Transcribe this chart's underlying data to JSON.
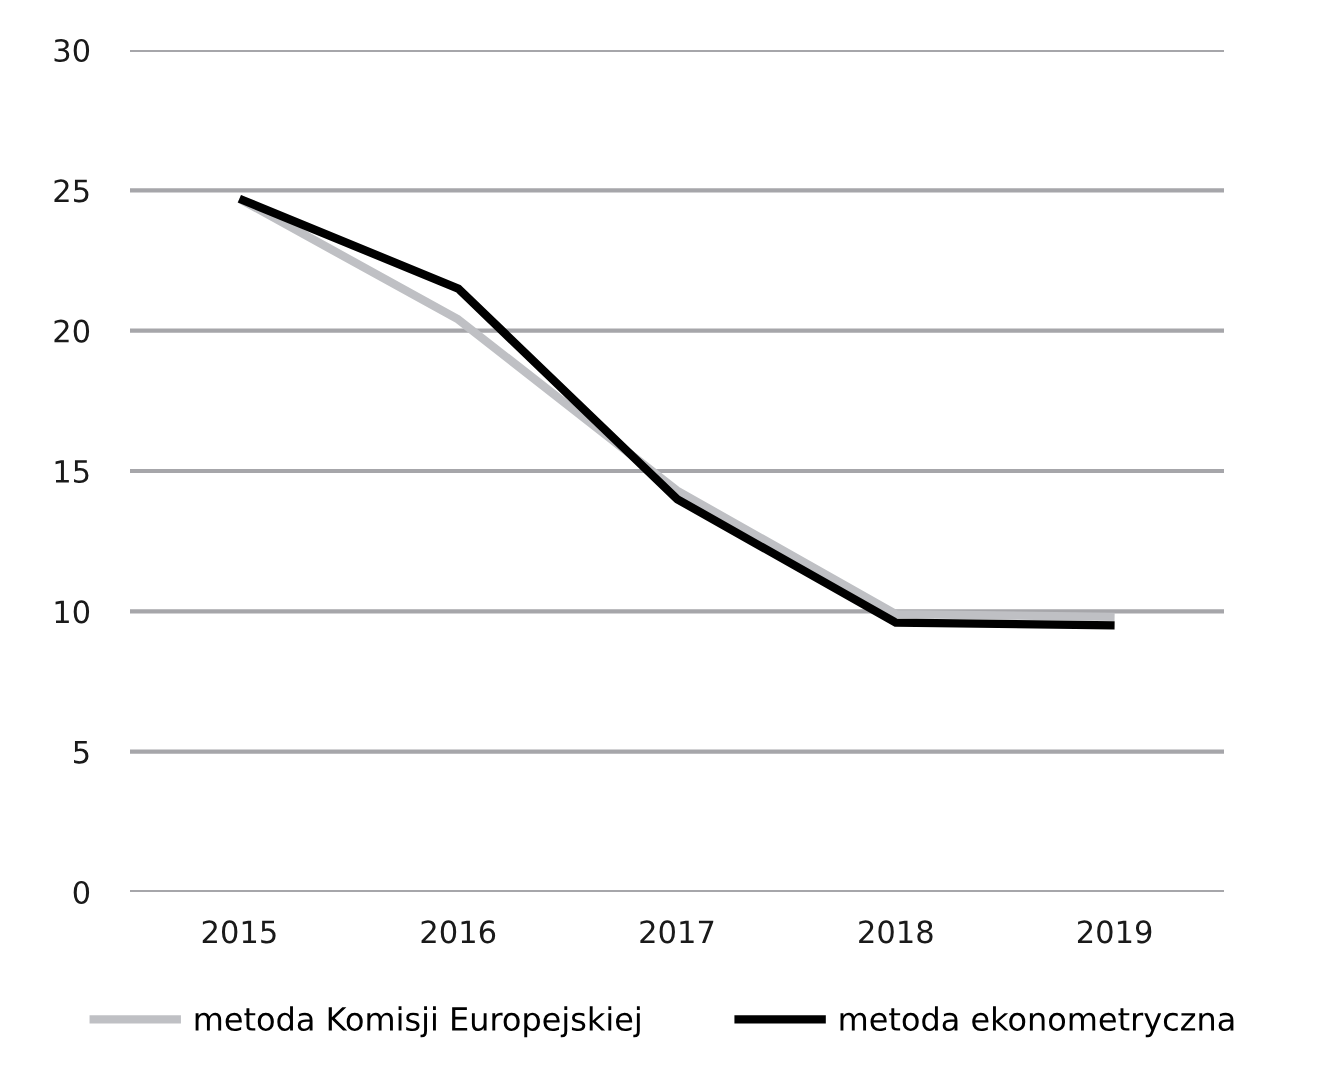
{
  "chart_data": {
    "type": "line",
    "categories": [
      "2015",
      "2016",
      "2017",
      "2018",
      "2019"
    ],
    "series": [
      {
        "name": "metoda Komisji Europejskiej",
        "color": "#bfc0c4",
        "values": [
          24.7,
          20.4,
          14.3,
          9.9,
          9.8
        ]
      },
      {
        "name": "metoda ekonometryczna",
        "color": "#000000",
        "values": [
          24.7,
          21.5,
          14.0,
          9.6,
          9.5
        ]
      }
    ],
    "ylim": [
      0,
      30
    ],
    "yticks": [
      0,
      5,
      10,
      15,
      20,
      25,
      30
    ],
    "grid": "y",
    "legend": "bottom",
    "marker": "none",
    "line_style": "solid"
  }
}
